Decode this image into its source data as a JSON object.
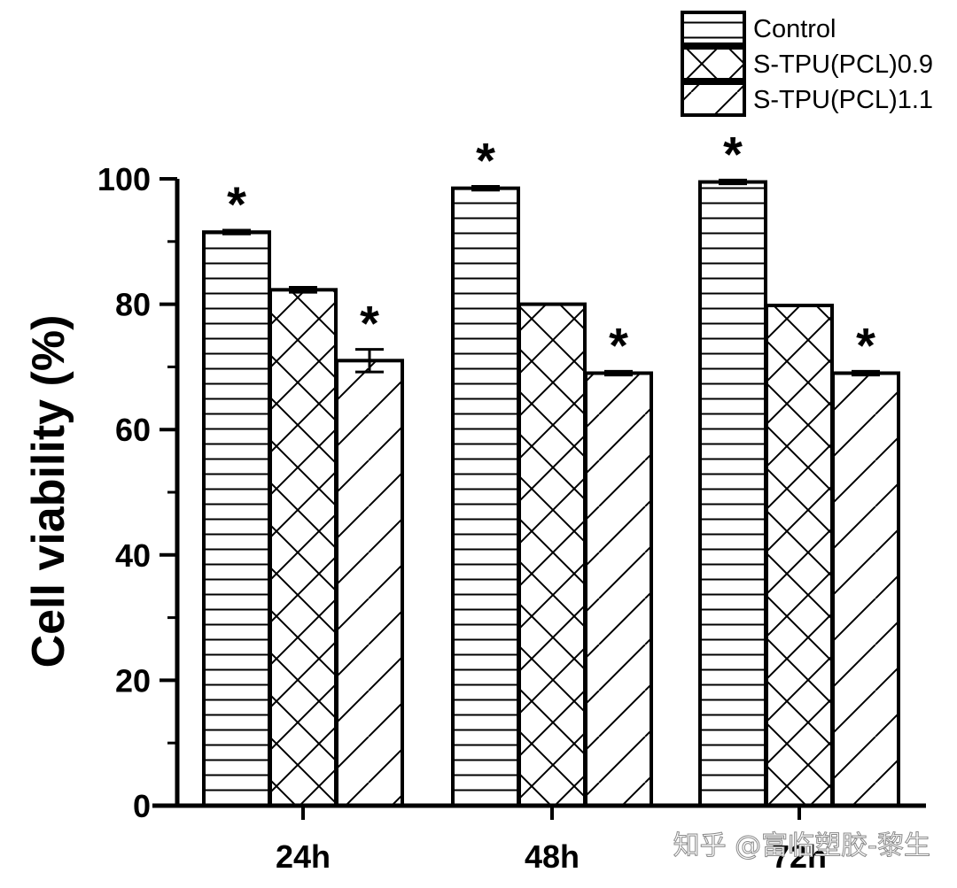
{
  "chart_data": {
    "type": "bar",
    "title": "",
    "xlabel": "",
    "ylabel": "Cell viability (%)",
    "ylim": [
      0,
      100
    ],
    "yticks": [
      0,
      20,
      40,
      60,
      80,
      100
    ],
    "categories": [
      "24h",
      "48h",
      "72h"
    ],
    "legend_position": "top-right",
    "series": [
      {
        "name": "Control",
        "pattern": "horizontal",
        "values": [
          91.5,
          98.5,
          99.5
        ],
        "errors": [
          0.3,
          0.3,
          0.3
        ],
        "significant": [
          true,
          true,
          true
        ]
      },
      {
        "name": "S-TPU(PCL)0.9",
        "pattern": "crosshatch",
        "values": [
          82.3,
          80.0,
          79.8
        ],
        "errors": [
          0.4,
          0,
          0
        ],
        "significant": [
          false,
          false,
          false
        ]
      },
      {
        "name": "S-TPU(PCL)1.1",
        "pattern": "diagonal",
        "values": [
          71.0,
          69.0,
          69.0
        ],
        "errors": [
          1.8,
          0.3,
          0.3
        ],
        "significant": [
          true,
          true,
          true
        ]
      }
    ],
    "significance_marker": "*"
  },
  "watermark": "知乎 @富临塑胶-黎生"
}
